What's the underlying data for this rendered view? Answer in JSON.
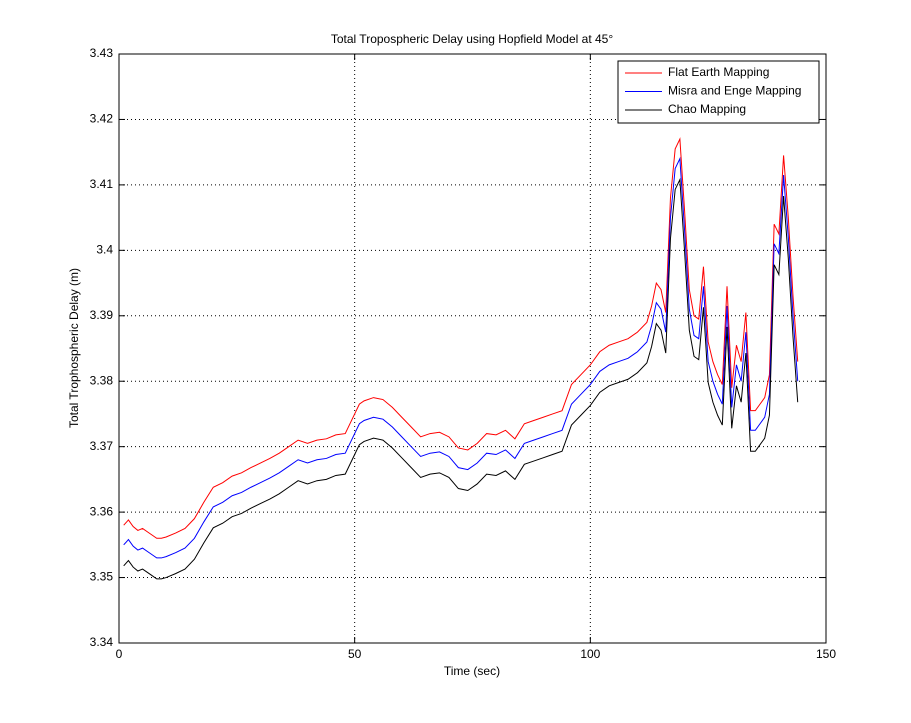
{
  "chart_data": {
    "type": "line",
    "title": "Total Tropospheric Delay using Hopfield Model at 45°",
    "xlabel": "Time (sec)",
    "ylabel": "Total Trophospheric Delay (m)",
    "x": [
      1,
      2,
      3,
      4,
      5,
      6,
      7,
      8,
      9,
      10,
      12,
      14,
      16,
      18,
      20,
      22,
      24,
      26,
      28,
      30,
      32,
      34,
      36,
      38,
      40,
      42,
      44,
      46,
      48,
      50,
      51,
      52,
      54,
      56,
      58,
      60,
      62,
      64,
      66,
      68,
      70,
      72,
      74,
      76,
      78,
      80,
      82,
      84,
      86,
      88,
      90,
      92,
      94,
      96,
      98,
      100,
      102,
      104,
      106,
      108,
      110,
      112,
      113,
      114,
      115,
      116,
      117,
      118,
      119,
      120,
      121,
      122,
      123,
      124,
      125,
      126,
      127,
      128,
      129,
      130,
      131,
      132,
      133,
      134,
      135,
      136,
      137,
      138,
      139,
      140,
      141,
      142,
      143,
      144
    ],
    "series": [
      {
        "name": "Flat Earth Mapping",
        "color": "#ff0000",
        "values": [
          3.358,
          3.3588,
          3.3578,
          3.3572,
          3.3575,
          3.357,
          3.3565,
          3.356,
          3.356,
          3.3562,
          3.3568,
          3.3575,
          3.359,
          3.3615,
          3.3638,
          3.3645,
          3.3655,
          3.366,
          3.3668,
          3.3675,
          3.3682,
          3.369,
          3.37,
          3.371,
          3.3705,
          3.371,
          3.3712,
          3.3718,
          3.372,
          3.375,
          3.3765,
          3.377,
          3.3775,
          3.3772,
          3.376,
          3.3745,
          3.373,
          3.3715,
          3.372,
          3.3722,
          3.3715,
          3.3698,
          3.3695,
          3.3705,
          3.372,
          3.3718,
          3.3725,
          3.3712,
          3.3735,
          3.374,
          3.3745,
          3.375,
          3.3755,
          3.3795,
          3.381,
          3.3825,
          3.3845,
          3.3855,
          3.386,
          3.3865,
          3.3875,
          3.389,
          3.3915,
          3.395,
          3.394,
          3.3905,
          3.408,
          3.4155,
          3.417,
          3.406,
          3.394,
          3.39,
          3.3895,
          3.3975,
          3.386,
          3.383,
          3.381,
          3.3795,
          3.3945,
          3.379,
          3.3855,
          3.383,
          3.3905,
          3.3755,
          3.3755,
          3.3765,
          3.3775,
          3.381,
          3.404,
          3.4025,
          3.4145,
          3.405,
          3.393,
          3.383
        ]
      },
      {
        "name": "Misra and Enge Mapping",
        "color": "#0000ff",
        "values": [
          3.355,
          3.3558,
          3.3548,
          3.3542,
          3.3545,
          3.354,
          3.3535,
          3.353,
          3.353,
          3.3532,
          3.3538,
          3.3545,
          3.356,
          3.3585,
          3.3608,
          3.3615,
          3.3625,
          3.363,
          3.3638,
          3.3645,
          3.3652,
          3.366,
          3.367,
          3.368,
          3.3675,
          3.368,
          3.3682,
          3.3688,
          3.369,
          3.372,
          3.3735,
          3.374,
          3.3745,
          3.3742,
          3.373,
          3.3715,
          3.37,
          3.3685,
          3.369,
          3.3692,
          3.3685,
          3.3668,
          3.3665,
          3.3675,
          3.369,
          3.3688,
          3.3695,
          3.3682,
          3.3705,
          3.371,
          3.3715,
          3.372,
          3.3725,
          3.3765,
          3.378,
          3.3795,
          3.3815,
          3.3825,
          3.383,
          3.3835,
          3.3845,
          3.386,
          3.3885,
          3.392,
          3.391,
          3.3875,
          3.405,
          3.4125,
          3.414,
          3.403,
          3.391,
          3.387,
          3.3865,
          3.3945,
          3.383,
          3.38,
          3.378,
          3.3765,
          3.3915,
          3.376,
          3.3825,
          3.38,
          3.3875,
          3.3725,
          3.3725,
          3.3735,
          3.3745,
          3.378,
          3.401,
          3.3995,
          3.4115,
          3.402,
          3.39,
          3.38
        ]
      },
      {
        "name": "Chao Mapping",
        "color": "#000000",
        "values": [
          3.3518,
          3.3526,
          3.3516,
          3.351,
          3.3513,
          3.3508,
          3.3503,
          3.3498,
          3.3498,
          3.35,
          3.3506,
          3.3513,
          3.3528,
          3.3553,
          3.3576,
          3.3583,
          3.3593,
          3.3598,
          3.3606,
          3.3613,
          3.362,
          3.3628,
          3.3638,
          3.3648,
          3.3643,
          3.3648,
          3.365,
          3.3656,
          3.3658,
          3.3688,
          3.3703,
          3.3708,
          3.3713,
          3.371,
          3.3698,
          3.3683,
          3.3668,
          3.3653,
          3.3658,
          3.366,
          3.3653,
          3.3636,
          3.3633,
          3.3643,
          3.3658,
          3.3656,
          3.3663,
          3.365,
          3.3673,
          3.3678,
          3.3683,
          3.3688,
          3.3693,
          3.3733,
          3.3748,
          3.3763,
          3.3783,
          3.3793,
          3.3798,
          3.3803,
          3.3813,
          3.3828,
          3.3853,
          3.3888,
          3.3878,
          3.3843,
          3.4018,
          3.4093,
          3.4108,
          3.3998,
          3.3878,
          3.3838,
          3.3833,
          3.3913,
          3.3798,
          3.3768,
          3.3748,
          3.3733,
          3.3883,
          3.3728,
          3.3793,
          3.3768,
          3.3843,
          3.3693,
          3.3693,
          3.3703,
          3.3713,
          3.3748,
          3.3978,
          3.3963,
          3.4083,
          3.3988,
          3.3868,
          3.3768
        ]
      }
    ],
    "xlim": [
      0,
      150
    ],
    "xticks": [
      0,
      50,
      100,
      150
    ],
    "ylim": [
      3.34,
      3.43
    ],
    "yticks": [
      3.34,
      3.35,
      3.36,
      3.37,
      3.38,
      3.39,
      3.4,
      3.41,
      3.42,
      3.43
    ],
    "grid": true,
    "legend": "top-right"
  }
}
